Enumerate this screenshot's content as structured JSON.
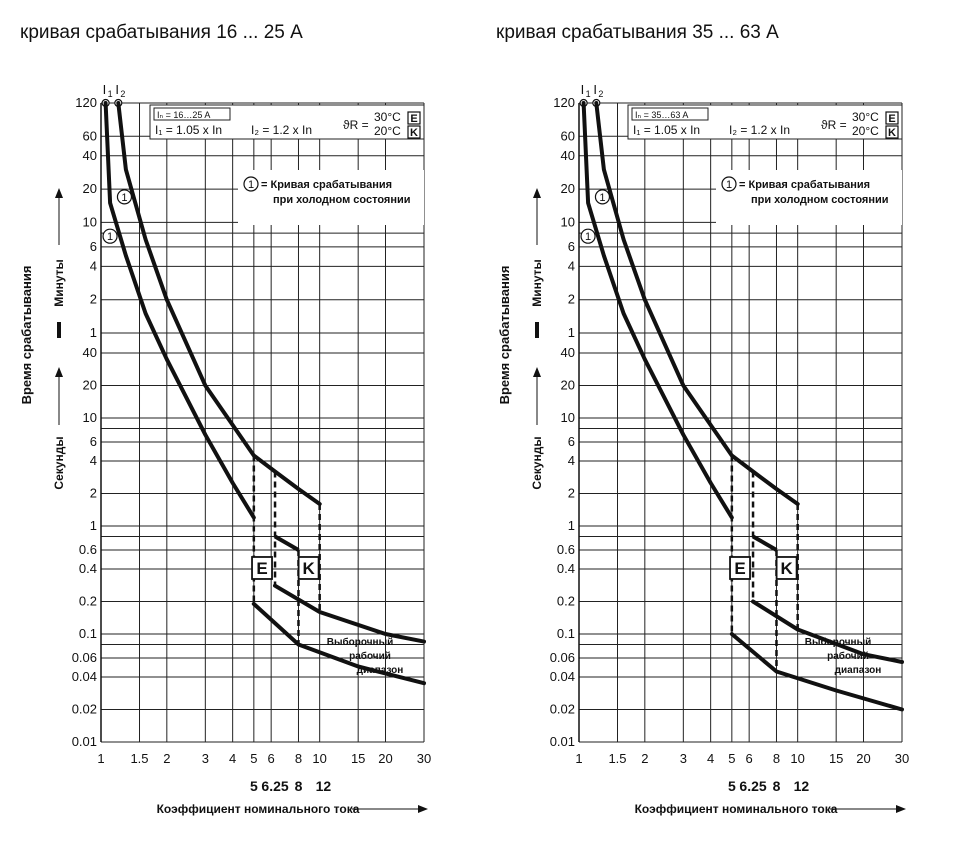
{
  "chart_data": [
    {
      "type": "line",
      "title": "кривая срабатывания 16 ... 25 А",
      "legend": {
        "rating": "Iₙ = 16…25 A",
        "i1": "I₁ = 1.05 x In",
        "i2": "I₂ = 1.2 x In",
        "theta": "ϑR =",
        "t30": "30°C",
        "t20": "20°C",
        "box_e": "E",
        "box_k": "K",
        "note_num": "1",
        "note_line1": "= Кривая срабатывания",
        "note_line2": "при холодном состоянии"
      },
      "xlabel": "Коэффициент номинального тока",
      "ylabel": "Время срабатывания",
      "ylabel_minutes": "Минуты",
      "ylabel_seconds": "Секунды",
      "x_scale": "log",
      "xlim": [
        1,
        30
      ],
      "x_ticks": [
        "1",
        "1.5",
        "2",
        "3",
        "4",
        "5",
        "6",
        "8",
        "10",
        "15",
        "20",
        "30"
      ],
      "x_sub_ticks": [
        "5",
        "6.25",
        "8",
        "12"
      ],
      "y_scale": "log",
      "y_minutes_ticks": [
        "120",
        "60",
        "40",
        "20",
        "10",
        "6",
        "4",
        "2",
        "1"
      ],
      "y_seconds_ticks": [
        "40",
        "20",
        "10",
        "6",
        "4",
        "2",
        "1",
        "0.6",
        "0.4",
        "0.2",
        "0.1",
        "0.06",
        "0.04",
        "0.02",
        "0.01"
      ],
      "markers": [
        "I1",
        "I2"
      ],
      "region_labels": [
        "E",
        "K"
      ],
      "band_label": [
        "Выборочный",
        "рабочий",
        "диапазон"
      ],
      "series": [
        {
          "name": "lower thermal",
          "x": [
            1.05,
            1.1,
            1.3,
            1.6,
            2,
            3,
            4,
            5
          ],
          "y_seconds": [
            7200,
            900,
            300,
            90,
            35,
            7,
            2.5,
            1.2
          ]
        },
        {
          "name": "upper thermal",
          "x": [
            1.2,
            1.3,
            1.6,
            2,
            3,
            5,
            6.25,
            8,
            10
          ],
          "y_seconds": [
            7200,
            1800,
            420,
            120,
            20,
            4.5,
            3.2,
            2.2,
            1.6
          ]
        },
        {
          "name": "lower magnetic",
          "x": [
            5,
            8,
            15,
            30
          ],
          "y_seconds": [
            0.19,
            0.08,
            0.05,
            0.035
          ]
        },
        {
          "name": "upper magnetic",
          "x": [
            6.25,
            10,
            20,
            30
          ],
          "y_seconds": [
            0.28,
            0.16,
            0.1,
            0.085
          ]
        }
      ]
    },
    {
      "type": "line",
      "title": "кривая срабатывания 35 ... 63 А",
      "legend": {
        "rating": "Iₙ = 35…63 A",
        "i1": "I₁ = 1.05 x In",
        "i2": "I₂ = 1.2 x In",
        "theta": "ϑR =",
        "t30": "30°C",
        "t20": "20°C",
        "box_e": "E",
        "box_k": "K",
        "note_num": "1",
        "note_line1": "= Кривая срабатывания",
        "note_line2": "при холодном состоянии"
      },
      "xlabel": "Коэффициент номинального тока",
      "ylabel": "Время срабатывания",
      "ylabel_minutes": "Минуты",
      "ylabel_seconds": "Секунды",
      "x_scale": "log",
      "xlim": [
        1,
        30
      ],
      "x_ticks": [
        "1",
        "1.5",
        "2",
        "3",
        "4",
        "5",
        "6",
        "8",
        "10",
        "15",
        "20",
        "30"
      ],
      "x_sub_ticks": [
        "5",
        "6.25",
        "8",
        "12"
      ],
      "y_scale": "log",
      "y_minutes_ticks": [
        "120",
        "60",
        "40",
        "20",
        "10",
        "6",
        "4",
        "2",
        "1"
      ],
      "y_seconds_ticks": [
        "40",
        "20",
        "10",
        "6",
        "4",
        "2",
        "1",
        "0.6",
        "0.4",
        "0.2",
        "0.1",
        "0.06",
        "0.04",
        "0.02",
        "0.01"
      ],
      "markers": [
        "I1",
        "I2"
      ],
      "region_labels": [
        "E",
        "K"
      ],
      "band_label": [
        "Выборочный",
        "рабочий",
        "диапазон"
      ],
      "series": [
        {
          "name": "lower thermal",
          "x": [
            1.05,
            1.1,
            1.3,
            1.6,
            2,
            3,
            4,
            5
          ],
          "y_seconds": [
            7200,
            900,
            300,
            90,
            35,
            7,
            2.5,
            1.2
          ]
        },
        {
          "name": "upper thermal",
          "x": [
            1.2,
            1.3,
            1.6,
            2,
            3,
            5,
            6.25,
            8,
            10
          ],
          "y_seconds": [
            7200,
            1800,
            420,
            120,
            20,
            4.5,
            3.2,
            2.2,
            1.6
          ]
        },
        {
          "name": "lower magnetic",
          "x": [
            5,
            8,
            15,
            30
          ],
          "y_seconds": [
            0.1,
            0.045,
            0.03,
            0.02
          ]
        },
        {
          "name": "upper magnetic",
          "x": [
            6.25,
            10,
            20,
            30
          ],
          "y_seconds": [
            0.2,
            0.11,
            0.065,
            0.055
          ]
        }
      ]
    }
  ]
}
